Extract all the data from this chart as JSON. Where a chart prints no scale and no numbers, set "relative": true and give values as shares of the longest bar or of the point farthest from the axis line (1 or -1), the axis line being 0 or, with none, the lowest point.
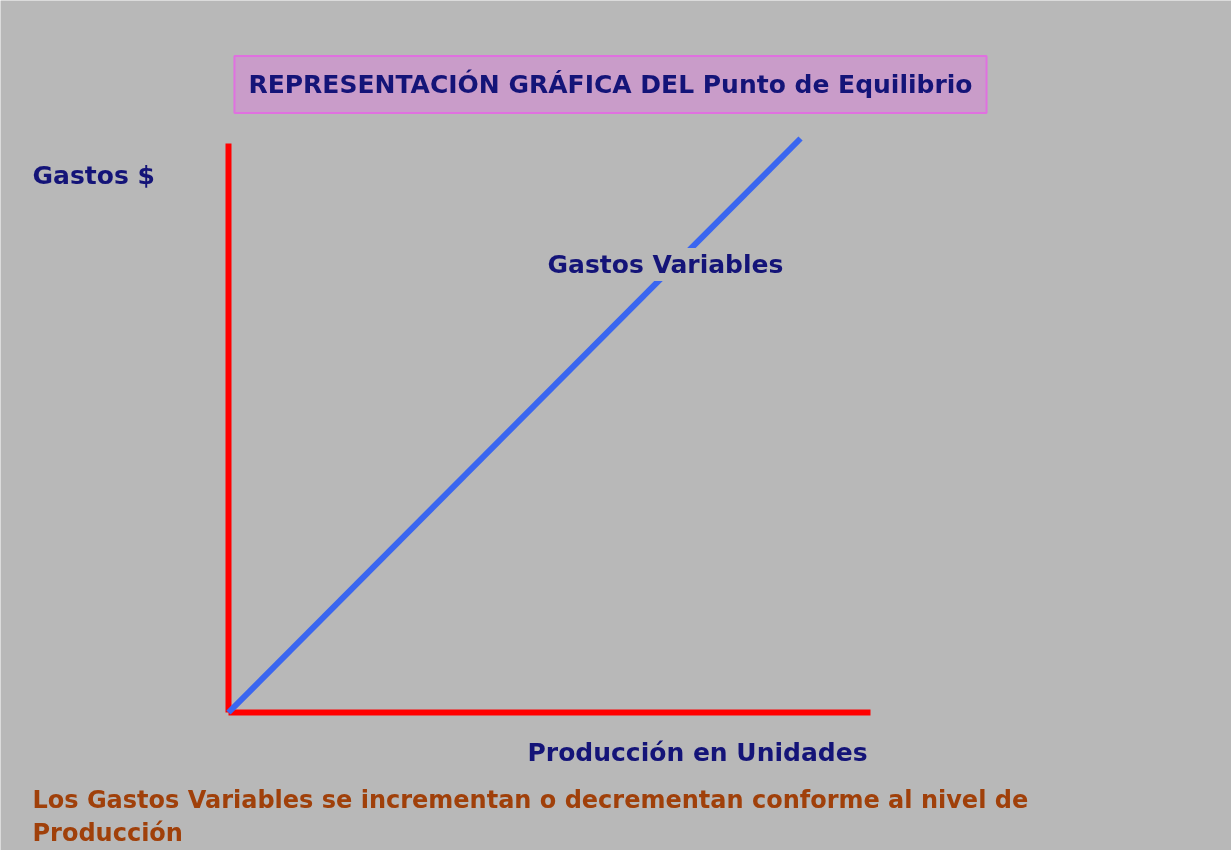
{
  "chart_data": {
    "type": "line",
    "title": "REPRESENTACIÓN GRÁFICA DEL Punto de Equilibrio",
    "xlabel": "Producción en Unidades",
    "ylabel": "Gastos $",
    "annotations": [
      "Los Gastos Variables se incrementan o decrementan conforme al nivel de Producción"
    ],
    "categories": [
      null,
      null
    ],
    "relative": true,
    "tick_labels": false,
    "series": [
      {
        "name": "Gastos Variables",
        "color": "#3a66f0",
        "values": [
          0,
          1
        ]
      }
    ]
  }
}
